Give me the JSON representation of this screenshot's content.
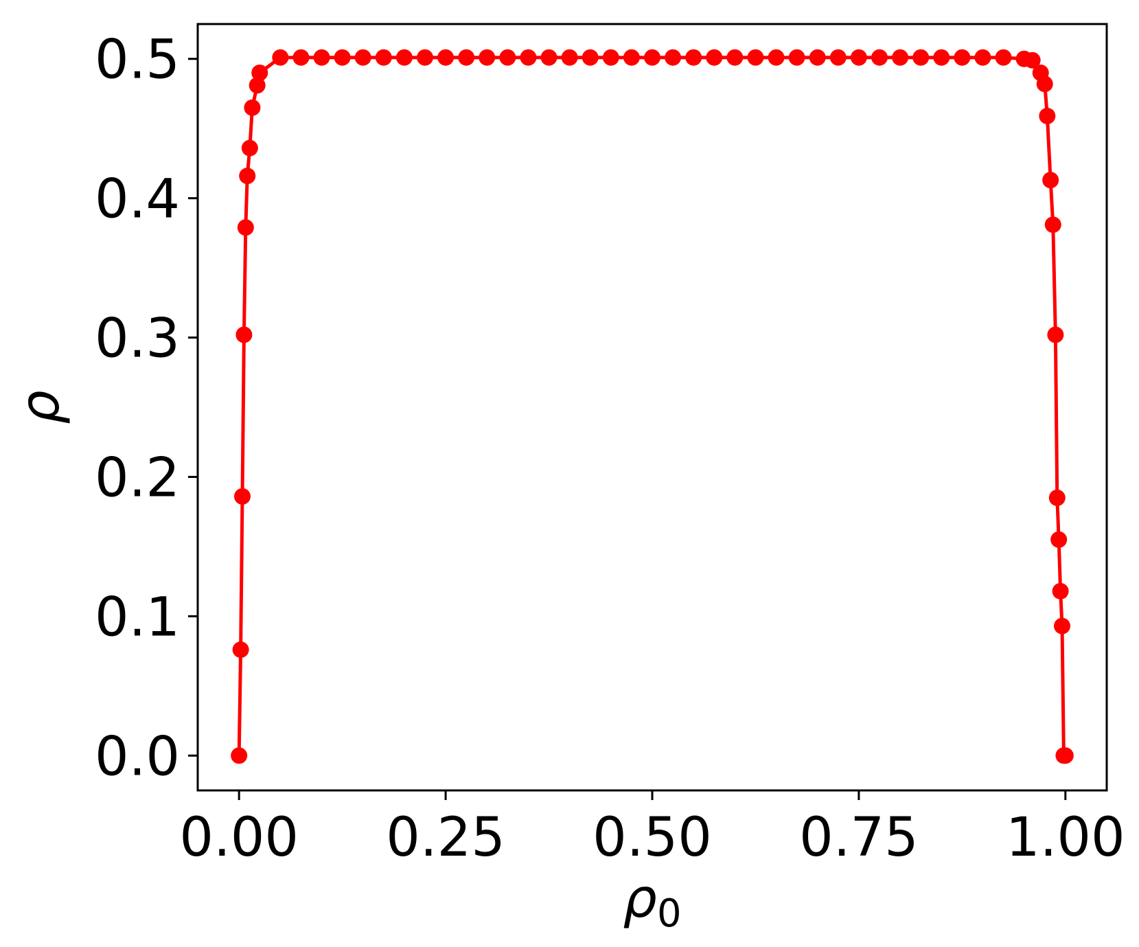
{
  "chart_data": {
    "type": "line",
    "title": "",
    "xlabel": "ρ",
    "xlabel_subscript": "0",
    "ylabel": "ρ",
    "xlim": [
      -0.05,
      1.05
    ],
    "ylim": [
      -0.025,
      0.525
    ],
    "xticks": [
      0.0,
      0.25,
      0.5,
      0.75,
      1.0
    ],
    "xtick_labels": [
      "0.00",
      "0.25",
      "0.50",
      "0.75",
      "1.00"
    ],
    "yticks": [
      0.0,
      0.1,
      0.2,
      0.3,
      0.4,
      0.5
    ],
    "ytick_labels": [
      "0.0",
      "0.1",
      "0.2",
      "0.3",
      "0.4",
      "0.5"
    ],
    "grid": false,
    "legend": "none",
    "series": [
      {
        "color": "#ff0000",
        "marker": "circle",
        "x": [
          0.0,
          0.002,
          0.004,
          0.006,
          0.008,
          0.01,
          0.013,
          0.016,
          0.022,
          0.025,
          0.05,
          0.075,
          0.1,
          0.125,
          0.15,
          0.175,
          0.2,
          0.225,
          0.25,
          0.275,
          0.3,
          0.325,
          0.35,
          0.375,
          0.4,
          0.425,
          0.45,
          0.475,
          0.5,
          0.525,
          0.55,
          0.575,
          0.6,
          0.625,
          0.65,
          0.675,
          0.7,
          0.725,
          0.75,
          0.775,
          0.8,
          0.825,
          0.85,
          0.875,
          0.9,
          0.925,
          0.95,
          0.96,
          0.97,
          0.975,
          0.978,
          0.982,
          0.985,
          0.988,
          0.99,
          0.992,
          0.994,
          0.996,
          0.998,
          0.999,
          1.0
        ],
        "y": [
          0.0,
          0.076,
          0.186,
          0.302,
          0.379,
          0.416,
          0.436,
          0.465,
          0.481,
          0.49,
          0.501,
          0.501,
          0.501,
          0.501,
          0.501,
          0.501,
          0.501,
          0.501,
          0.501,
          0.501,
          0.501,
          0.501,
          0.501,
          0.501,
          0.501,
          0.501,
          0.501,
          0.501,
          0.501,
          0.501,
          0.501,
          0.501,
          0.501,
          0.501,
          0.501,
          0.501,
          0.501,
          0.501,
          0.501,
          0.501,
          0.501,
          0.501,
          0.501,
          0.501,
          0.501,
          0.501,
          0.5,
          0.499,
          0.49,
          0.482,
          0.459,
          0.413,
          0.381,
          0.302,
          0.185,
          0.155,
          0.118,
          0.093,
          0.0,
          0.0,
          0.0
        ]
      }
    ]
  }
}
